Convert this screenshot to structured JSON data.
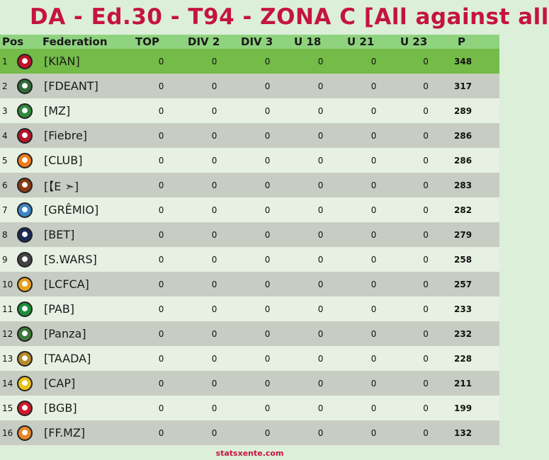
{
  "title": "DA - Ed.30 - T94 - ZONA C  [All against all",
  "columns": [
    "Pos",
    "Federation",
    "TOP",
    "DIV 2",
    "DIV 3",
    "U 18",
    "U 21",
    "U 23",
    "P"
  ],
  "rows": [
    {
      "pos": "1",
      "federation": "[KΙΆΝ]",
      "top": "0",
      "div2": "0",
      "div3": "0",
      "u18": "0",
      "u21": "0",
      "u23": "0",
      "p": "348",
      "logo_color": "#c0122a"
    },
    {
      "pos": "2",
      "federation": "[FDEANT]",
      "top": "0",
      "div2": "0",
      "div3": "0",
      "u18": "0",
      "u21": "0",
      "u23": "0",
      "p": "317",
      "logo_color": "#2f6b3a"
    },
    {
      "pos": "3",
      "federation": "[MZ]",
      "top": "0",
      "div2": "0",
      "div3": "0",
      "u18": "0",
      "u21": "0",
      "u23": "0",
      "p": "289",
      "logo_color": "#2e8b3e"
    },
    {
      "pos": "4",
      "federation": "[Fiebre]",
      "top": "0",
      "div2": "0",
      "div3": "0",
      "u18": "0",
      "u21": "0",
      "u23": "0",
      "p": "286",
      "logo_color": "#b5152b"
    },
    {
      "pos": "5",
      "federation": "[CLUB]",
      "top": "0",
      "div2": "0",
      "div3": "0",
      "u18": "0",
      "u21": "0",
      "u23": "0",
      "p": "286",
      "logo_color": "#f07c1a"
    },
    {
      "pos": "6",
      "federation": "[【E ➣]",
      "top": "0",
      "div2": "0",
      "div3": "0",
      "u18": "0",
      "u21": "0",
      "u23": "0",
      "p": "283",
      "logo_color": "#8a3a12"
    },
    {
      "pos": "7",
      "federation": "[GRÊMIO]",
      "top": "0",
      "div2": "0",
      "div3": "0",
      "u18": "0",
      "u21": "0",
      "u23": "0",
      "p": "282",
      "logo_color": "#3b86c6"
    },
    {
      "pos": "8",
      "federation": "[BET]",
      "top": "0",
      "div2": "0",
      "div3": "0",
      "u18": "0",
      "u21": "0",
      "u23": "0",
      "p": "279",
      "logo_color": "#1b2a55"
    },
    {
      "pos": "9",
      "federation": "[S.WARS]",
      "top": "0",
      "div2": "0",
      "div3": "0",
      "u18": "0",
      "u21": "0",
      "u23": "0",
      "p": "258",
      "logo_color": "#444444"
    },
    {
      "pos": "10",
      "federation": "[LCFCA]",
      "top": "0",
      "div2": "0",
      "div3": "0",
      "u18": "0",
      "u21": "0",
      "u23": "0",
      "p": "257",
      "logo_color": "#e6a21a"
    },
    {
      "pos": "11",
      "federation": "[PAB]",
      "top": "0",
      "div2": "0",
      "div3": "0",
      "u18": "0",
      "u21": "0",
      "u23": "0",
      "p": "233",
      "logo_color": "#1f8f3a"
    },
    {
      "pos": "12",
      "federation": "[Panza]",
      "top": "0",
      "div2": "0",
      "div3": "0",
      "u18": "0",
      "u21": "0",
      "u23": "0",
      "p": "232",
      "logo_color": "#3c7a3a"
    },
    {
      "pos": "13",
      "federation": "[TAADA]",
      "top": "0",
      "div2": "0",
      "div3": "0",
      "u18": "0",
      "u21": "0",
      "u23": "0",
      "p": "228",
      "logo_color": "#b88a2a"
    },
    {
      "pos": "14",
      "federation": "[CAP]",
      "top": "0",
      "div2": "0",
      "div3": "0",
      "u18": "0",
      "u21": "0",
      "u23": "0",
      "p": "211",
      "logo_color": "#e8c21a"
    },
    {
      "pos": "15",
      "federation": "[BGB]",
      "top": "0",
      "div2": "0",
      "div3": "0",
      "u18": "0",
      "u21": "0",
      "u23": "0",
      "p": "199",
      "logo_color": "#d21a2a"
    },
    {
      "pos": "16",
      "federation": "[FF.MZ]",
      "top": "0",
      "div2": "0",
      "div3": "0",
      "u18": "0",
      "u21": "0",
      "u23": "0",
      "p": "132",
      "logo_color": "#e8862a"
    }
  ],
  "footer": "statsxente.com"
}
